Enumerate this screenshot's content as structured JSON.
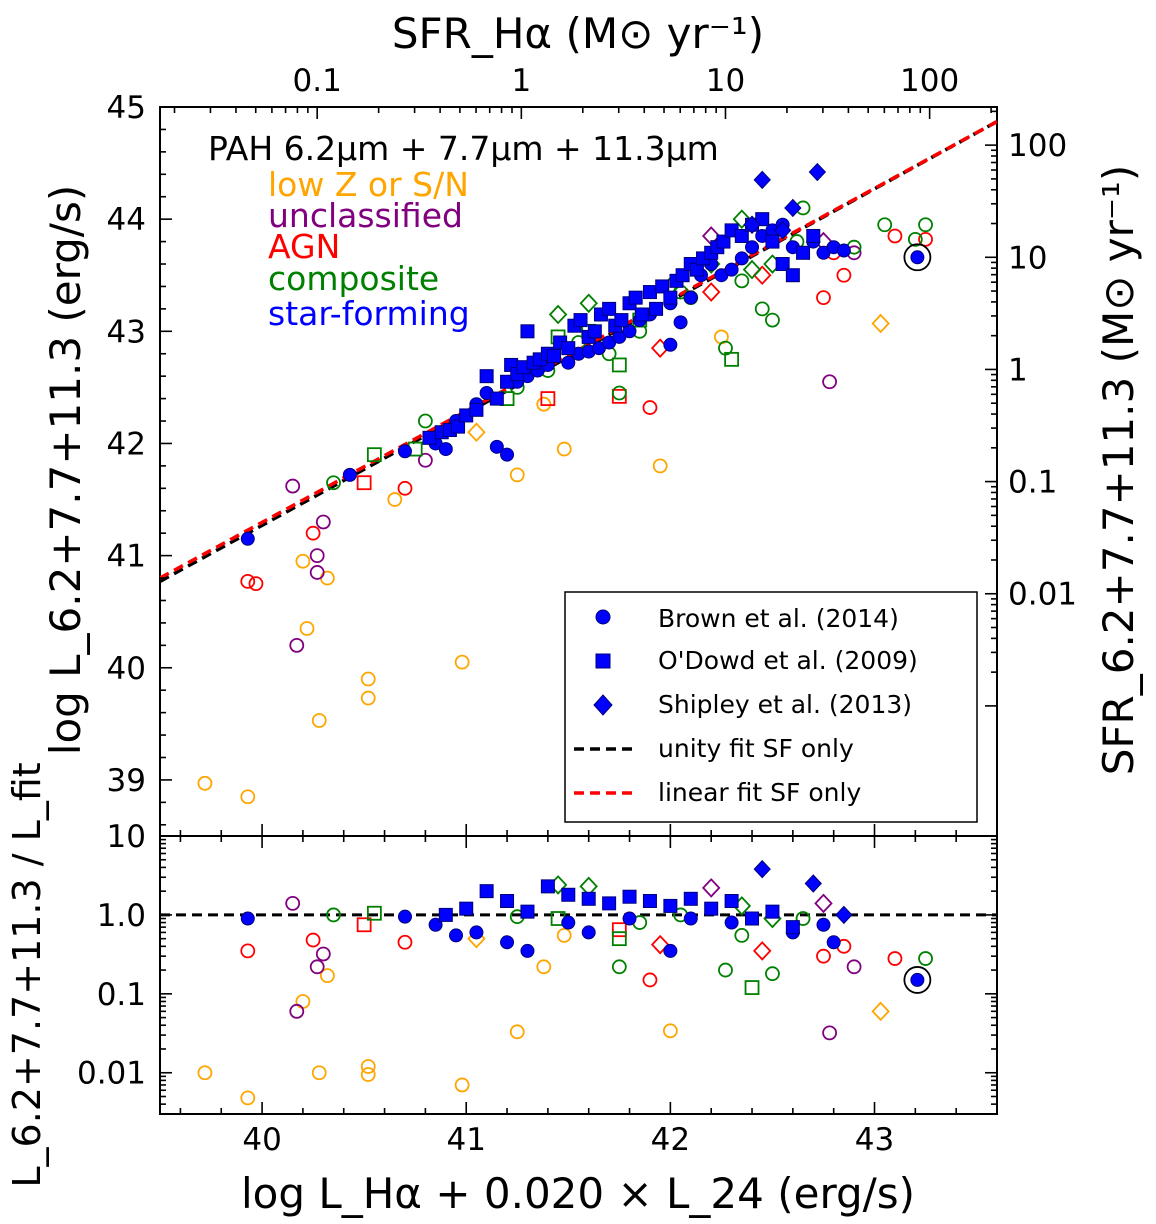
{
  "chart_data": [
    {
      "type": "scatter",
      "panel": "main",
      "title": "PAH 6.2μm + 7.7μm + 11.3μm",
      "xlabel": "log L_Hα + 0.020 × L_24 (erg/s)",
      "ylabel": "log L_6.2+7.7+11.3 (erg/s)",
      "top_axis_label": "SFR_Hα (M⊙ yr⁻¹)",
      "right_axis_label": "SFR_6.2+7.7+11.3 (M⊙ yr⁻¹)",
      "xlim": [
        39.5,
        43.6
      ],
      "ylim": [
        38.5,
        45.0
      ],
      "x_ticks": [
        "40",
        "41",
        "42",
        "43"
      ],
      "y_ticks": [
        "39",
        "40",
        "41",
        "42",
        "43",
        "44",
        "45"
      ],
      "top_ticks": [
        "0.1",
        "1",
        "10",
        "100"
      ],
      "right_ticks": [
        "0.01",
        "0.1",
        "1",
        "10",
        "100"
      ],
      "class_labels": [
        {
          "label": "low Z or S/N",
          "color": "#FFA500"
        },
        {
          "label": "unclassified",
          "color": "#800080"
        },
        {
          "label": "AGN",
          "color": "#FF0000"
        },
        {
          "label": "composite",
          "color": "#008000"
        },
        {
          "label": "star-forming",
          "color": "#0000FF"
        }
      ],
      "legend": [
        {
          "label": "Brown et al. (2014)",
          "marker": "circle"
        },
        {
          "label": "O'Dowd et al. (2009)",
          "marker": "square"
        },
        {
          "label": "Shipley et al. (2013)",
          "marker": "diamond"
        },
        {
          "label": "unity fit SF only",
          "line": "dashed",
          "color": "#000000"
        },
        {
          "label": "linear fit SF only",
          "line": "dashed",
          "color": "#FF0000"
        }
      ],
      "legend_position": "lower-right",
      "fit_lines": [
        {
          "name": "unity fit SF only",
          "color": "#000000",
          "points": [
            [
              39.5,
              40.77
            ],
            [
              43.6,
              44.87
            ]
          ]
        },
        {
          "name": "linear fit SF only",
          "color": "#FF0000",
          "points": [
            [
              39.5,
              40.8
            ],
            [
              43.6,
              44.87
            ]
          ]
        }
      ],
      "series": [
        {
          "group": "star-forming",
          "marker": "circle",
          "color": "#0000FF",
          "filled": true,
          "x": [
            39.93,
            40.43,
            40.7,
            40.85,
            40.9,
            40.95,
            41.05,
            41.1,
            41.15,
            41.2,
            41.25,
            41.3,
            41.35,
            41.4,
            41.5,
            41.55,
            41.6,
            41.65,
            41.7,
            41.75,
            41.8,
            41.85,
            41.9,
            42.0,
            42.0,
            42.05,
            42.1,
            42.15,
            42.2,
            42.25,
            42.3,
            42.35,
            42.4,
            42.45,
            42.5,
            42.55,
            42.6,
            42.7,
            42.75,
            42.8,
            42.85,
            43.21
          ],
          "y": [
            41.15,
            41.72,
            41.93,
            42.0,
            41.95,
            42.2,
            42.35,
            42.45,
            41.97,
            41.9,
            42.55,
            42.6,
            42.65,
            42.7,
            42.72,
            42.8,
            42.82,
            42.85,
            42.9,
            42.95,
            43.0,
            43.1,
            43.15,
            43.25,
            42.88,
            43.08,
            43.3,
            43.5,
            43.6,
            43.5,
            43.55,
            43.65,
            43.75,
            43.85,
            43.9,
            43.95,
            43.75,
            43.8,
            43.7,
            43.75,
            43.72,
            43.66
          ]
        },
        {
          "group": "star-forming",
          "marker": "square",
          "color": "#0000FF",
          "filled": true,
          "x": [
            40.82,
            40.88,
            40.92,
            40.96,
            41.0,
            41.05,
            41.1,
            41.15,
            41.2,
            41.22,
            41.25,
            41.28,
            41.3,
            41.33,
            41.36,
            41.4,
            41.43,
            41.46,
            41.5,
            41.53,
            41.56,
            41.6,
            41.63,
            41.66,
            41.7,
            41.73,
            41.76,
            41.8,
            41.83,
            41.86,
            41.9,
            41.93,
            41.96,
            42.0,
            42.03,
            42.06,
            42.1,
            42.13,
            42.16,
            42.2,
            42.23,
            42.26,
            42.3,
            42.35,
            42.4,
            42.45,
            42.5,
            42.55,
            42.6,
            42.65,
            42.7
          ],
          "y": [
            42.05,
            42.1,
            42.12,
            42.15,
            42.25,
            42.3,
            42.6,
            42.4,
            42.55,
            42.7,
            42.62,
            42.68,
            43.0,
            42.72,
            42.75,
            42.8,
            42.78,
            42.9,
            42.85,
            43.05,
            43.1,
            42.95,
            43.0,
            43.15,
            43.2,
            43.05,
            43.1,
            43.25,
            43.3,
            43.15,
            43.35,
            43.2,
            43.4,
            43.3,
            43.45,
            43.5,
            43.6,
            43.55,
            43.65,
            43.7,
            43.75,
            43.8,
            43.9,
            43.85,
            43.95,
            44.0,
            43.8,
            43.6,
            43.5,
            43.7,
            43.85
          ]
        },
        {
          "group": "star-forming",
          "marker": "diamond",
          "color": "#0000FF",
          "filled": true,
          "x": [
            42.45,
            42.6,
            42.72,
            42.55,
            42.4
          ],
          "y": [
            44.35,
            44.1,
            44.42,
            43.9,
            43.95
          ]
        },
        {
          "group": "composite",
          "marker": "circle",
          "color": "#008000",
          "filled": false,
          "x": [
            40.35,
            40.8,
            41.25,
            41.4,
            41.55,
            41.7,
            41.75,
            41.85,
            42.05,
            42.1,
            42.27,
            42.35,
            42.45,
            42.5,
            42.62,
            42.65,
            42.9,
            43.05,
            43.25,
            43.2
          ],
          "y": [
            41.65,
            42.2,
            42.5,
            42.65,
            42.9,
            42.8,
            42.45,
            43.0,
            43.35,
            43.3,
            42.85,
            43.45,
            43.2,
            43.1,
            43.8,
            44.1,
            43.75,
            43.95,
            43.95,
            43.82
          ]
        },
        {
          "group": "composite",
          "marker": "square",
          "color": "#008000",
          "filled": false,
          "x": [
            40.55,
            40.75,
            41.2,
            41.45,
            41.6,
            41.75,
            41.85,
            42.3
          ],
          "y": [
            41.9,
            41.95,
            42.4,
            42.95,
            43.0,
            42.7,
            43.1,
            42.75
          ]
        },
        {
          "group": "composite",
          "marker": "diamond",
          "color": "#008000",
          "filled": false,
          "x": [
            41.45,
            41.6,
            42.0,
            42.2,
            42.35,
            42.4,
            42.5
          ],
          "y": [
            43.15,
            43.25,
            43.4,
            43.6,
            44.0,
            43.55,
            43.6
          ]
        },
        {
          "group": "AGN",
          "marker": "circle",
          "color": "#FF0000",
          "filled": false,
          "x": [
            39.93,
            39.97,
            40.25,
            40.7,
            41.9,
            42.75,
            42.8,
            42.85,
            43.1,
            43.25
          ],
          "y": [
            40.77,
            40.75,
            41.2,
            41.6,
            42.32,
            43.3,
            43.7,
            43.5,
            43.85,
            43.82
          ]
        },
        {
          "group": "AGN",
          "marker": "square",
          "color": "#FF0000",
          "filled": false,
          "x": [
            40.5,
            41.4,
            41.75
          ],
          "y": [
            41.65,
            42.4,
            42.42
          ]
        },
        {
          "group": "AGN",
          "marker": "diamond",
          "color": "#FF0000",
          "filled": false,
          "x": [
            41.95,
            42.2,
            42.45
          ],
          "y": [
            42.85,
            43.35,
            43.5
          ]
        },
        {
          "group": "unclassified",
          "marker": "circle",
          "color": "#800080",
          "filled": false,
          "x": [
            40.15,
            40.17,
            40.27,
            40.27,
            40.3,
            40.8,
            42.78,
            42.9
          ],
          "y": [
            41.62,
            40.2,
            41.0,
            40.85,
            41.3,
            41.85,
            42.55,
            43.7
          ]
        },
        {
          "group": "unclassified",
          "marker": "diamond",
          "color": "#800080",
          "filled": false,
          "x": [
            42.2,
            42.75
          ],
          "y": [
            43.85,
            43.8
          ]
        },
        {
          "group": "low Z or S/N",
          "marker": "circle",
          "color": "#FFA500",
          "filled": false,
          "x": [
            39.72,
            39.93,
            40.2,
            40.22,
            40.28,
            40.32,
            40.52,
            40.52,
            40.65,
            40.98,
            41.25,
            41.38,
            41.48,
            41.95,
            42.25
          ],
          "y": [
            38.97,
            38.85,
            40.95,
            40.35,
            39.53,
            40.8,
            39.9,
            39.73,
            41.5,
            40.05,
            41.72,
            42.35,
            41.95,
            41.8,
            42.95
          ]
        },
        {
          "group": "low Z or S/N",
          "marker": "diamond",
          "color": "#FFA500",
          "filled": false,
          "x": [
            41.05,
            43.03
          ],
          "y": [
            42.1,
            43.07
          ]
        }
      ],
      "highlighted_point": {
        "x": 43.21,
        "y": 43.66
      }
    },
    {
      "type": "scatter",
      "panel": "residual",
      "ylabel": "L_6.2+7.7+11.3 / L_fit",
      "xlim": [
        39.5,
        43.6
      ],
      "ylim": [
        0.003,
        10
      ],
      "y_scale": "log",
      "y_ticks": [
        "0.01",
        "0.1",
        "1.0",
        "10"
      ],
      "reference_line": 1.0,
      "series": [
        {
          "group": "star-forming",
          "marker": "circle",
          "color": "#0000FF",
          "filled": true,
          "x": [
            39.93,
            40.7,
            40.85,
            40.95,
            41.05,
            41.2,
            41.3,
            41.5,
            41.6,
            41.8,
            42.0,
            42.1,
            42.3,
            42.4,
            42.6,
            42.75,
            42.8,
            43.21
          ],
          "y": [
            0.9,
            0.95,
            0.75,
            0.55,
            0.6,
            0.45,
            0.35,
            0.8,
            0.6,
            0.9,
            0.35,
            0.9,
            0.8,
            0.9,
            0.6,
            0.75,
            0.45,
            0.15
          ]
        },
        {
          "group": "star-forming",
          "marker": "square",
          "color": "#0000FF",
          "filled": true,
          "x": [
            40.9,
            41.0,
            41.1,
            41.2,
            41.3,
            41.4,
            41.5,
            41.6,
            41.7,
            41.8,
            41.9,
            42.0,
            42.1,
            42.2,
            42.3,
            42.4,
            42.5,
            42.6
          ],
          "y": [
            1.0,
            1.2,
            2.0,
            1.5,
            1.1,
            2.3,
            1.8,
            1.6,
            1.4,
            1.7,
            1.5,
            1.3,
            1.6,
            1.2,
            1.5,
            0.9,
            1.1,
            0.7
          ]
        },
        {
          "group": "star-forming",
          "marker": "diamond",
          "color": "#0000FF",
          "filled": true,
          "x": [
            42.45,
            42.7,
            42.85
          ],
          "y": [
            3.8,
            2.5,
            1.0
          ]
        },
        {
          "group": "composite",
          "marker": "circle",
          "color": "#008000",
          "filled": false,
          "x": [
            40.35,
            41.25,
            41.75,
            41.85,
            42.05,
            42.27,
            42.35,
            42.5,
            42.65,
            43.25
          ],
          "y": [
            1.0,
            0.95,
            0.22,
            0.8,
            1.0,
            0.2,
            0.55,
            0.18,
            0.9,
            0.28
          ]
        },
        {
          "group": "composite",
          "marker": "square",
          "color": "#008000",
          "filled": false,
          "x": [
            40.55,
            41.45,
            41.75,
            42.4
          ],
          "y": [
            1.05,
            0.9,
            0.5,
            0.12
          ]
        },
        {
          "group": "composite",
          "marker": "diamond",
          "color": "#008000",
          "filled": false,
          "x": [
            41.45,
            41.6,
            42.35,
            42.5
          ],
          "y": [
            2.4,
            2.3,
            1.3,
            0.9
          ]
        },
        {
          "group": "AGN",
          "marker": "circle",
          "color": "#FF0000",
          "filled": false,
          "x": [
            39.93,
            40.25,
            40.7,
            41.9,
            42.75,
            42.85,
            43.1
          ],
          "y": [
            0.35,
            0.48,
            0.45,
            0.15,
            0.3,
            0.4,
            0.28
          ]
        },
        {
          "group": "AGN",
          "marker": "square",
          "color": "#FF0000",
          "filled": false,
          "x": [
            40.5,
            41.75
          ],
          "y": [
            0.75,
            0.65
          ]
        },
        {
          "group": "AGN",
          "marker": "diamond",
          "color": "#FF0000",
          "filled": false,
          "x": [
            41.95,
            42.45
          ],
          "y": [
            0.42,
            0.35
          ]
        },
        {
          "group": "unclassified",
          "marker": "circle",
          "color": "#800080",
          "filled": false,
          "x": [
            40.15,
            40.17,
            40.27,
            40.3,
            42.78,
            42.9
          ],
          "y": [
            1.4,
            0.06,
            0.22,
            0.32,
            0.032,
            0.22
          ]
        },
        {
          "group": "unclassified",
          "marker": "diamond",
          "color": "#800080",
          "filled": false,
          "x": [
            42.2,
            42.75
          ],
          "y": [
            2.2,
            1.4
          ]
        },
        {
          "group": "low Z or S/N",
          "marker": "circle",
          "color": "#FFA500",
          "filled": false,
          "x": [
            39.72,
            39.93,
            40.2,
            40.28,
            40.32,
            40.52,
            40.52,
            40.98,
            41.25,
            41.38,
            41.48,
            42.0
          ],
          "y": [
            0.01,
            0.0048,
            0.08,
            0.01,
            0.17,
            0.012,
            0.0095,
            0.007,
            0.033,
            0.22,
            0.55,
            0.034
          ]
        },
        {
          "group": "low Z or S/N",
          "marker": "diamond",
          "color": "#FFA500",
          "filled": false,
          "x": [
            41.05,
            43.03
          ],
          "y": [
            0.5,
            0.06
          ]
        }
      ],
      "highlighted_point": {
        "x": 43.21,
        "y": 0.15
      }
    }
  ]
}
